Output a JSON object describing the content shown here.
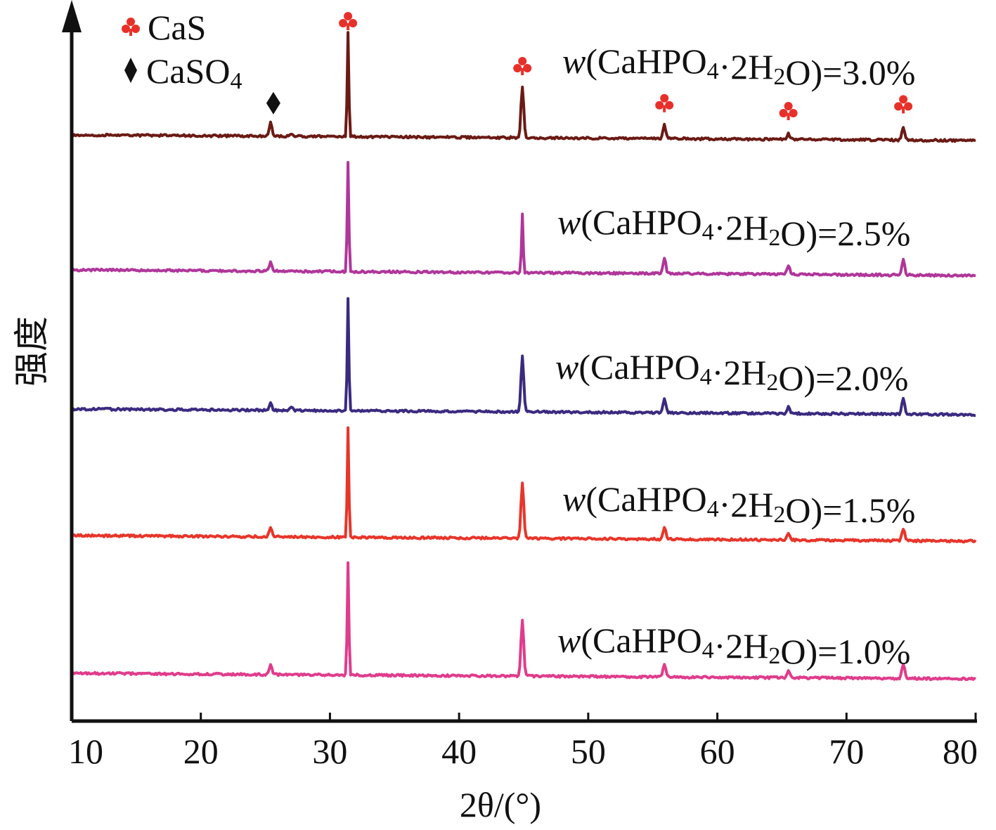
{
  "chart_data": {
    "type": "line",
    "xlabel": "2θ/(°)",
    "ylabel": "强度",
    "xlim": [
      10,
      80
    ],
    "xticks": [
      "10",
      "20",
      "30",
      "40",
      "50",
      "60",
      "70",
      "80"
    ],
    "grid": false,
    "legend": {
      "placement": "top-left",
      "items": [
        {
          "label": "CaS",
          "marker": "club-icon",
          "color": "#e8302a"
        },
        {
          "label": "CaSO4",
          "marker": "diamond-icon",
          "color": "#111111"
        }
      ]
    },
    "series": [
      {
        "label_prefix": "w",
        "label": "(CaHPO4·2H2O)=3.0%",
        "color": "#6b1a14",
        "peaks": [
          [
            25.4,
            0.12
          ],
          [
            27.0,
            0.02
          ],
          [
            31.4,
            0.92
          ],
          [
            44.9,
            0.45
          ],
          [
            55.9,
            0.12
          ],
          [
            65.5,
            0.05
          ],
          [
            74.4,
            0.11
          ]
        ]
      },
      {
        "label_prefix": "w",
        "label": "(CaHPO4·2H2O)=2.5%",
        "color": "#b0369a",
        "peaks": [
          [
            25.4,
            0.08
          ],
          [
            31.4,
            0.98
          ],
          [
            44.9,
            0.52
          ],
          [
            55.9,
            0.14
          ],
          [
            65.5,
            0.08
          ],
          [
            74.4,
            0.14
          ]
        ]
      },
      {
        "label_prefix": "w",
        "label": "(CaHPO4·2H2O)=2.0%",
        "color": "#3b2a80",
        "peaks": [
          [
            25.4,
            0.06
          ],
          [
            27.0,
            0.03
          ],
          [
            31.4,
            1.0
          ],
          [
            44.9,
            0.5
          ],
          [
            55.9,
            0.13
          ],
          [
            65.5,
            0.06
          ],
          [
            74.4,
            0.15
          ]
        ]
      },
      {
        "label_prefix": "w",
        "label": "(CaHPO4·2H2O)=1.5%",
        "color": "#e8352a",
        "peaks": [
          [
            25.4,
            0.09
          ],
          [
            31.4,
            0.97
          ],
          [
            44.9,
            0.5
          ],
          [
            55.9,
            0.11
          ],
          [
            65.5,
            0.06
          ],
          [
            74.4,
            0.11
          ]
        ]
      },
      {
        "label_prefix": "w",
        "label": "(CaHPO4·2H2O)=1.0%",
        "color": "#e03c8c",
        "peaks": [
          [
            25.4,
            0.08
          ],
          [
            31.4,
            1.0
          ],
          [
            44.9,
            0.5
          ],
          [
            55.9,
            0.12
          ],
          [
            65.5,
            0.06
          ],
          [
            74.4,
            0.13
          ]
        ]
      }
    ],
    "annotations": [
      {
        "marker": "diamond-icon",
        "x": 25.4
      },
      {
        "marker": "club-icon",
        "x": 31.4
      },
      {
        "marker": "club-icon",
        "x": 44.9
      },
      {
        "marker": "club-icon",
        "x": 55.9
      },
      {
        "marker": "club-icon",
        "x": 65.5
      },
      {
        "marker": "club-icon",
        "x": 74.4
      }
    ]
  }
}
